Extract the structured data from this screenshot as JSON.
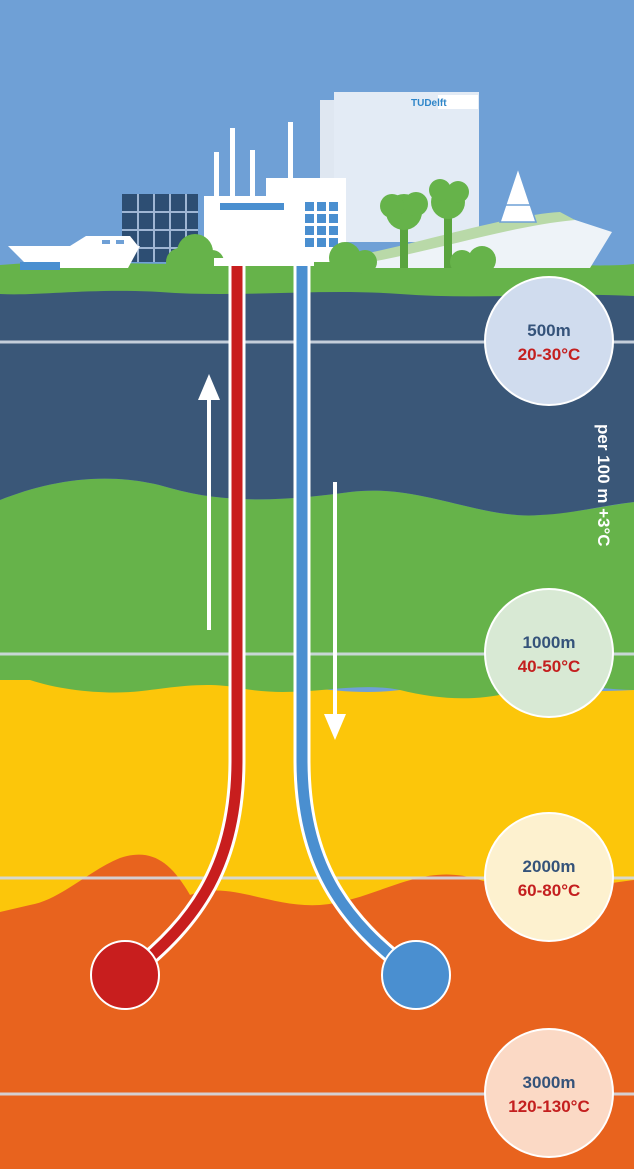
{
  "logo": {
    "text": "TUDelft"
  },
  "gradient_note": "per 100 m +3°C",
  "depth_markers": [
    {
      "depth": "500m",
      "temperature": "20-30°C"
    },
    {
      "depth": "1000m",
      "temperature": "40-50°C"
    },
    {
      "depth": "2000m",
      "temperature": "60-80°C"
    },
    {
      "depth": "3000m",
      "temperature": "120-130°C"
    }
  ],
  "colors": {
    "sky": "#6fa0d6",
    "ground_green": "#66b34a",
    "dark_layer": "#3a5778",
    "yellow_layer": "#fcc60a",
    "orange_layer": "#e8631e",
    "hot_pipe": "#c81e1e",
    "cold_pipe": "#4a8fd0",
    "temp_text": "#c41f1f",
    "depth_text": "#35537a"
  },
  "icons": [
    "boat-icon",
    "office-building-icon",
    "power-plant-icon",
    "tudelft-tower-icon",
    "tree-icon",
    "flow-up-arrow-icon",
    "flow-down-arrow-icon"
  ]
}
